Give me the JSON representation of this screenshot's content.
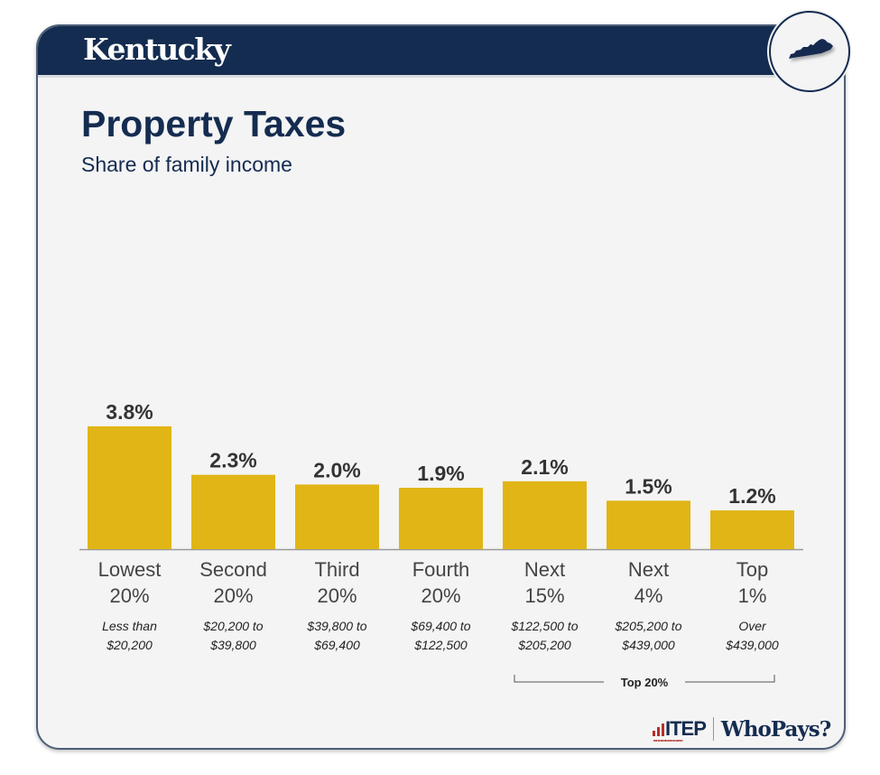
{
  "header": {
    "state": "Kentucky",
    "state_icon": "kentucky-map-icon"
  },
  "title": "Property Taxes",
  "subtitle": "Share of family income",
  "colors": {
    "bar": "#e1b516",
    "navy": "#142c50",
    "label": "#333333",
    "axis": "#999999"
  },
  "chart_data": {
    "type": "bar",
    "title": "Property Taxes",
    "subtitle": "Share of family income",
    "categories": [
      "Lowest 20%",
      "Second 20%",
      "Third 20%",
      "Fourth 20%",
      "Next 15%",
      "Next 4%",
      "Top 1%"
    ],
    "category_lines": [
      [
        "Lowest",
        "20%"
      ],
      [
        "Second",
        "20%"
      ],
      [
        "Third",
        "20%"
      ],
      [
        "Fourth",
        "20%"
      ],
      [
        "Next",
        "15%"
      ],
      [
        "Next",
        "4%"
      ],
      [
        "Top",
        "1%"
      ]
    ],
    "income_ranges": [
      [
        "Less than",
        "$20,200"
      ],
      [
        "$20,200 to",
        "$39,800"
      ],
      [
        "$39,800 to",
        "$69,400"
      ],
      [
        "$69,400 to",
        "$122,500"
      ],
      [
        "$122,500 to",
        "$205,200"
      ],
      [
        "$205,200 to",
        "$439,000"
      ],
      [
        "Over",
        "$439,000"
      ]
    ],
    "values": [
      3.8,
      2.3,
      2.0,
      1.9,
      2.1,
      1.5,
      1.2
    ],
    "value_labels": [
      "3.8%",
      "2.3%",
      "2.0%",
      "1.9%",
      "2.1%",
      "1.5%",
      "1.2%"
    ],
    "unit": "%",
    "ylim": [
      0,
      3.8
    ],
    "grid": false,
    "xlabel": "",
    "ylabel": "",
    "group_bracket": {
      "label": "Top 20%",
      "from_index": 4,
      "to_index": 6
    }
  },
  "footer": {
    "org": "ITEP",
    "org_tagline": "INSTITUTE ON TAXATION AND ECONOMIC POLICY",
    "brand": "WhoPays?"
  }
}
